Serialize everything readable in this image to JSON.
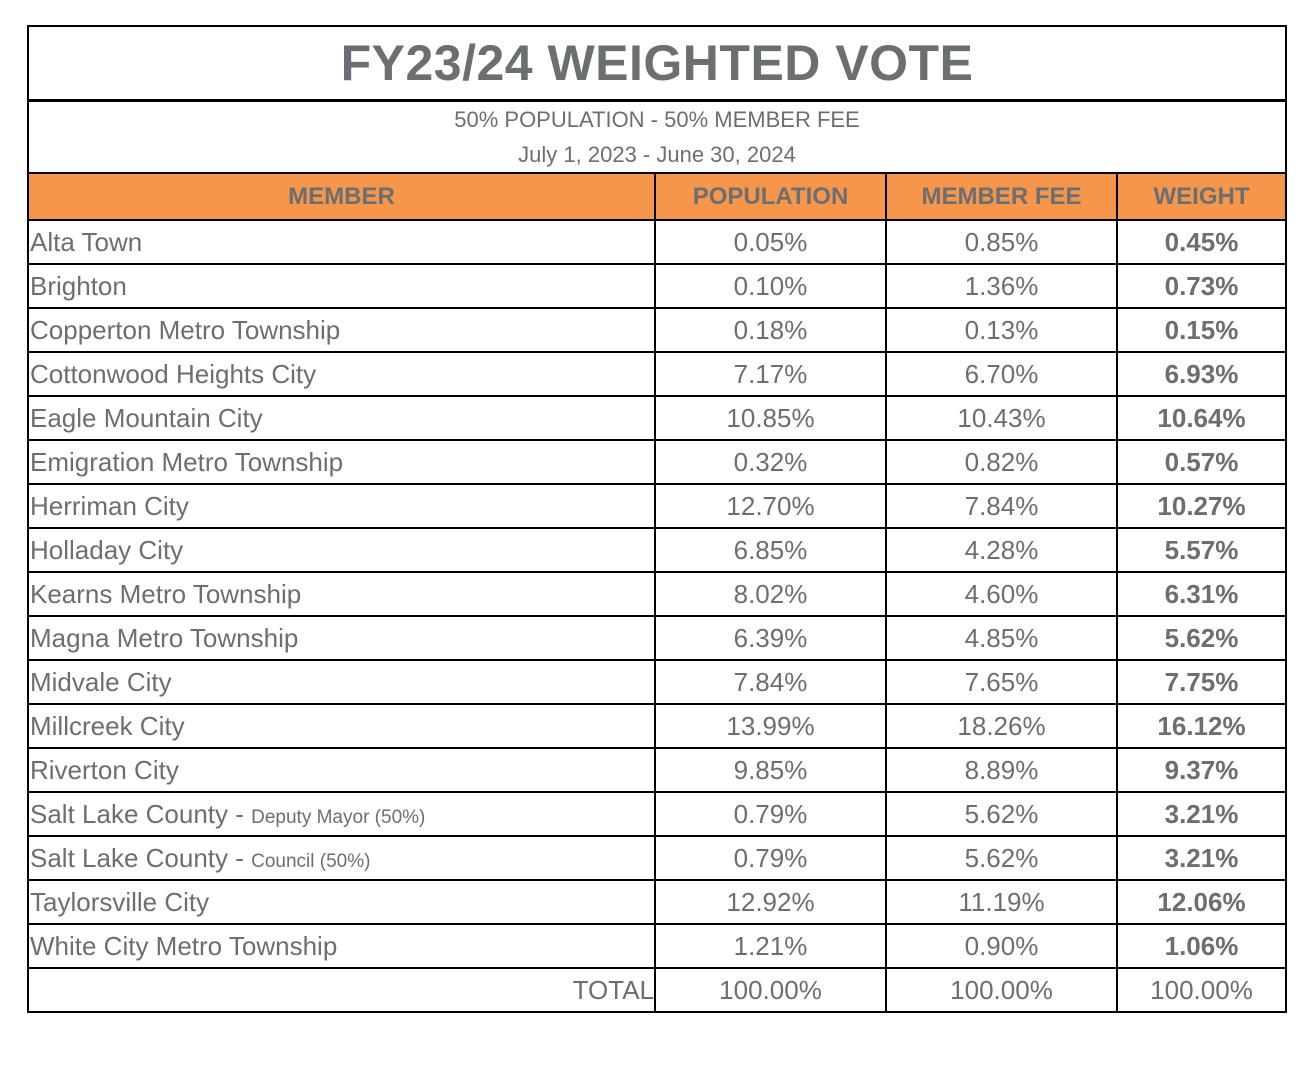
{
  "title": "FY23/24 WEIGHTED VOTE",
  "subtitle": "50% POPULATION - 50% MEMBER FEE",
  "period": "July 1, 2023 - June 30, 2024",
  "headers": {
    "member": "MEMBER",
    "population": "POPULATION",
    "fee": "MEMBER FEE",
    "weight": "WEIGHT"
  },
  "rows": [
    {
      "member": "Alta Town",
      "note": "",
      "population": "0.05%",
      "fee": "0.85%",
      "weight": "0.45%"
    },
    {
      "member": "Brighton",
      "note": "",
      "population": "0.10%",
      "fee": "1.36%",
      "weight": "0.73%"
    },
    {
      "member": "Copperton Metro Township",
      "note": "",
      "population": "0.18%",
      "fee": "0.13%",
      "weight": "0.15%"
    },
    {
      "member": "Cottonwood Heights City",
      "note": "",
      "population": "7.17%",
      "fee": "6.70%",
      "weight": "6.93%"
    },
    {
      "member": "Eagle Mountain City",
      "note": "",
      "population": "10.85%",
      "fee": "10.43%",
      "weight": "10.64%"
    },
    {
      "member": "Emigration Metro Township",
      "note": "",
      "population": "0.32%",
      "fee": "0.82%",
      "weight": "0.57%"
    },
    {
      "member": "Herriman City",
      "note": "",
      "population": "12.70%",
      "fee": "7.84%",
      "weight": "10.27%"
    },
    {
      "member": "Holladay City",
      "note": "",
      "population": "6.85%",
      "fee": "4.28%",
      "weight": "5.57%"
    },
    {
      "member": "Kearns Metro Township",
      "note": "",
      "population": "8.02%",
      "fee": "4.60%",
      "weight": "6.31%"
    },
    {
      "member": "Magna Metro Township",
      "note": "",
      "population": "6.39%",
      "fee": "4.85%",
      "weight": "5.62%"
    },
    {
      "member": "Midvale City",
      "note": "",
      "population": "7.84%",
      "fee": "7.65%",
      "weight": "7.75%"
    },
    {
      "member": "Millcreek City",
      "note": "",
      "population": "13.99%",
      "fee": "18.26%",
      "weight": "16.12%"
    },
    {
      "member": "Riverton City",
      "note": "",
      "population": "9.85%",
      "fee": "8.89%",
      "weight": "9.37%"
    },
    {
      "member": "Salt Lake County - ",
      "note": "Deputy Mayor (50%)",
      "population": "0.79%",
      "fee": "5.62%",
      "weight": "3.21%"
    },
    {
      "member": "Salt Lake County - ",
      "note": "Council (50%)",
      "population": "0.79%",
      "fee": "5.62%",
      "weight": "3.21%"
    },
    {
      "member": "Taylorsville City",
      "note": "",
      "population": "12.92%",
      "fee": "11.19%",
      "weight": "12.06%"
    },
    {
      "member": "White City Metro Township",
      "note": "",
      "population": "1.21%",
      "fee": "0.90%",
      "weight": "1.06%"
    }
  ],
  "total": {
    "label": "TOTAL",
    "population": "100.00%",
    "fee": "100.00%",
    "weight": "100.00%"
  },
  "colors": {
    "header_bg": "#f5964a",
    "text": "#6d6e71"
  }
}
